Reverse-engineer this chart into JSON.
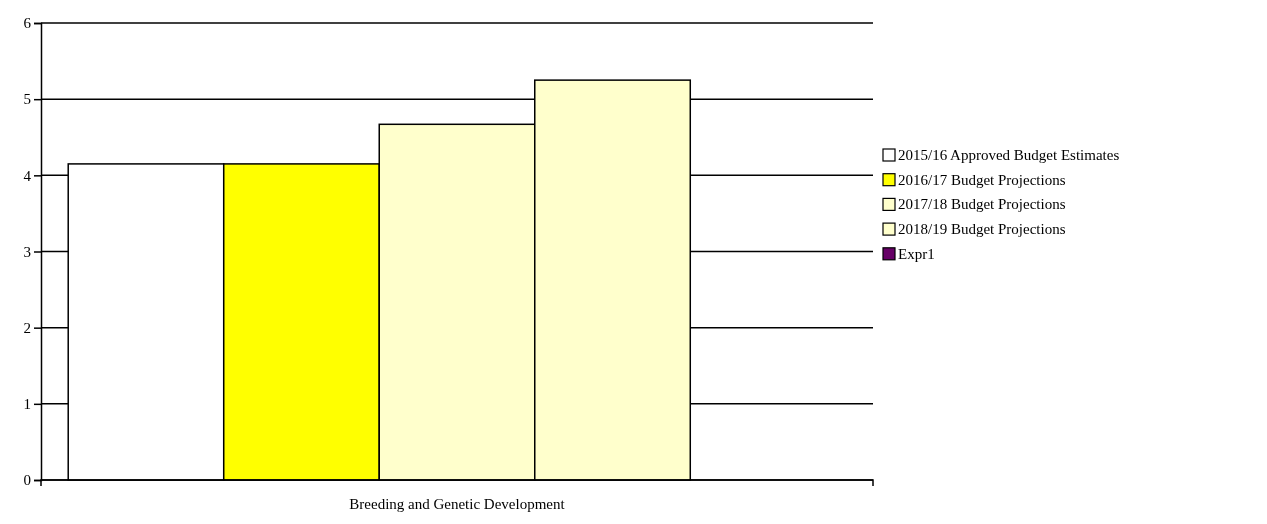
{
  "chart_data": {
    "type": "bar",
    "categories": [
      "Breeding and Genetic Development"
    ],
    "series": [
      {
        "name": "2015/16 Approved Budget Estimates",
        "color": "#ffffff",
        "values": [
          4.15
        ]
      },
      {
        "name": "2016/17 Budget Projections",
        "color": "#ffff00",
        "values": [
          4.15
        ]
      },
      {
        "name": "2017/18 Budget Projections",
        "color": "#ffffcc",
        "values": [
          4.67
        ]
      },
      {
        "name": "2018/19 Budget Projections",
        "color": "#ffffcc",
        "values": [
          5.25
        ]
      },
      {
        "name": "Expr1",
        "color": "#660066",
        "values": [
          null
        ]
      }
    ],
    "ylim": [
      0,
      6
    ],
    "yticks": [
      0,
      1,
      2,
      3,
      4,
      5,
      6
    ],
    "grid": "y",
    "legend": "right"
  }
}
